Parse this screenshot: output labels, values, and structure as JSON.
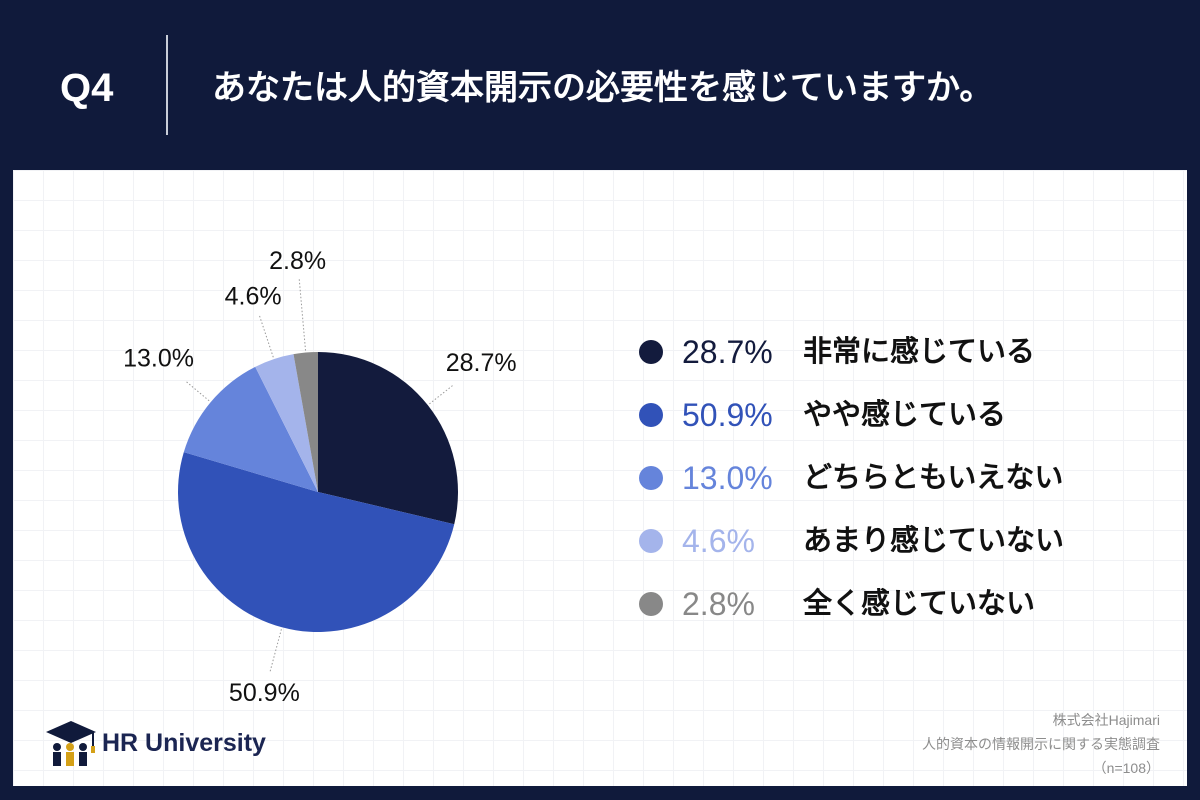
{
  "header": {
    "question_number": "Q4"
  },
  "chart_data": {
    "type": "pie",
    "title": "あなたは人的資本開示の必要性を感じていますか。",
    "categories": [
      "非常に感じている",
      "やや感じている",
      "どちらともいえない",
      "あまり感じていない",
      "全く感じていない"
    ],
    "values": [
      28.7,
      50.9,
      13.0,
      4.6,
      2.8
    ],
    "value_labels": [
      "28.7%",
      "50.9%",
      "13.0%",
      "4.6%",
      "2.8%"
    ],
    "colors": [
      "#131b3d",
      "#3152b8",
      "#6584db",
      "#a4b4eb",
      "#888888"
    ],
    "legend_position": "right"
  },
  "footer": {
    "brand": "HR University",
    "source_lines": [
      "株式会社Hajimari",
      "人的資本の情報開示に関する実態調査",
      "（n=108）"
    ]
  }
}
